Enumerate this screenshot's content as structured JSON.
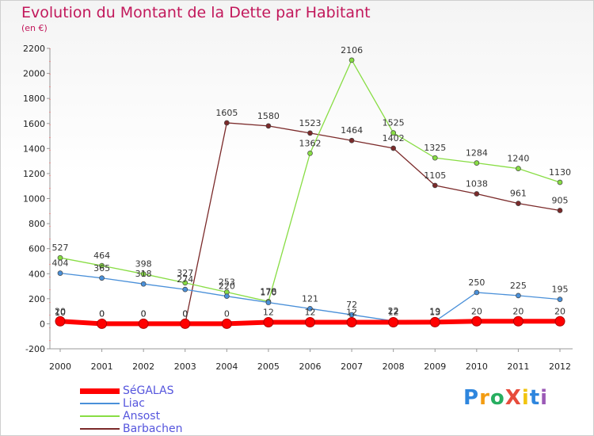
{
  "title": "Evolution du Montant de la Dette par Habitant",
  "subtitle": "(en €)",
  "logo": {
    "text": "ProXiti",
    "colors": [
      "#2e86de",
      "#f39c12",
      "#27ae60",
      "#e74c3c",
      "#f1c40f",
      "#2e86de",
      "#9b59b6"
    ]
  },
  "chart_data": {
    "type": "line",
    "title": "Evolution du Montant de la Dette par Habitant",
    "subtitle": "(en €)",
    "xlabel": "",
    "ylabel": "",
    "x": [
      "2000",
      "2001",
      "2002",
      "2003",
      "2004",
      "2005",
      "2006",
      "2007",
      "2008",
      "2009",
      "2010",
      "2011",
      "2012"
    ],
    "ylim": [
      -200,
      2200
    ],
    "yticks": [
      -200,
      0,
      200,
      400,
      600,
      800,
      1000,
      1200,
      1400,
      1600,
      1800,
      2000,
      2200
    ],
    "grid": false,
    "legend": "bottom-left",
    "series": [
      {
        "name": "SéGALAS",
        "color": "#ff0000",
        "values": [
          20,
          0,
          0,
          0,
          0,
          12,
          12,
          12,
          12,
          13,
          20,
          20,
          20
        ],
        "labels": [
          "20",
          "0",
          "0",
          "0",
          "0",
          "12",
          "12",
          "12",
          "12",
          "13",
          "20",
          "20",
          "20"
        ]
      },
      {
        "name": "Liac",
        "color": "#4a90d9",
        "values": [
          404,
          365,
          318,
          274,
          220,
          170,
          121,
          72,
          22,
          19,
          250,
          225,
          195
        ],
        "labels": [
          "404",
          "365",
          "318",
          "274",
          "220",
          "170",
          "121",
          "72",
          "22",
          "19",
          "250",
          "225",
          "195"
        ]
      },
      {
        "name": "Ansost",
        "color": "#88dd44",
        "values": [
          527,
          464,
          398,
          327,
          253,
          178,
          1362,
          2106,
          1525,
          1325,
          1284,
          1240,
          1130
        ],
        "labels": [
          "527",
          "464",
          "398",
          "327",
          "253",
          "178",
          "1362",
          "2106",
          "1525",
          "1325",
          "1284",
          "1240",
          "1130"
        ]
      },
      {
        "name": "Barbachen",
        "color": "#7b2a2a",
        "values": [
          10,
          0,
          0,
          0,
          1605,
          1580,
          1523,
          1464,
          1402,
          1105,
          1038,
          961,
          905
        ],
        "labels": [
          "10",
          "0",
          "0",
          "0",
          "1605",
          "1580",
          "1523",
          "1464",
          "1402",
          "1105",
          "1038",
          "961",
          "905"
        ]
      }
    ]
  }
}
